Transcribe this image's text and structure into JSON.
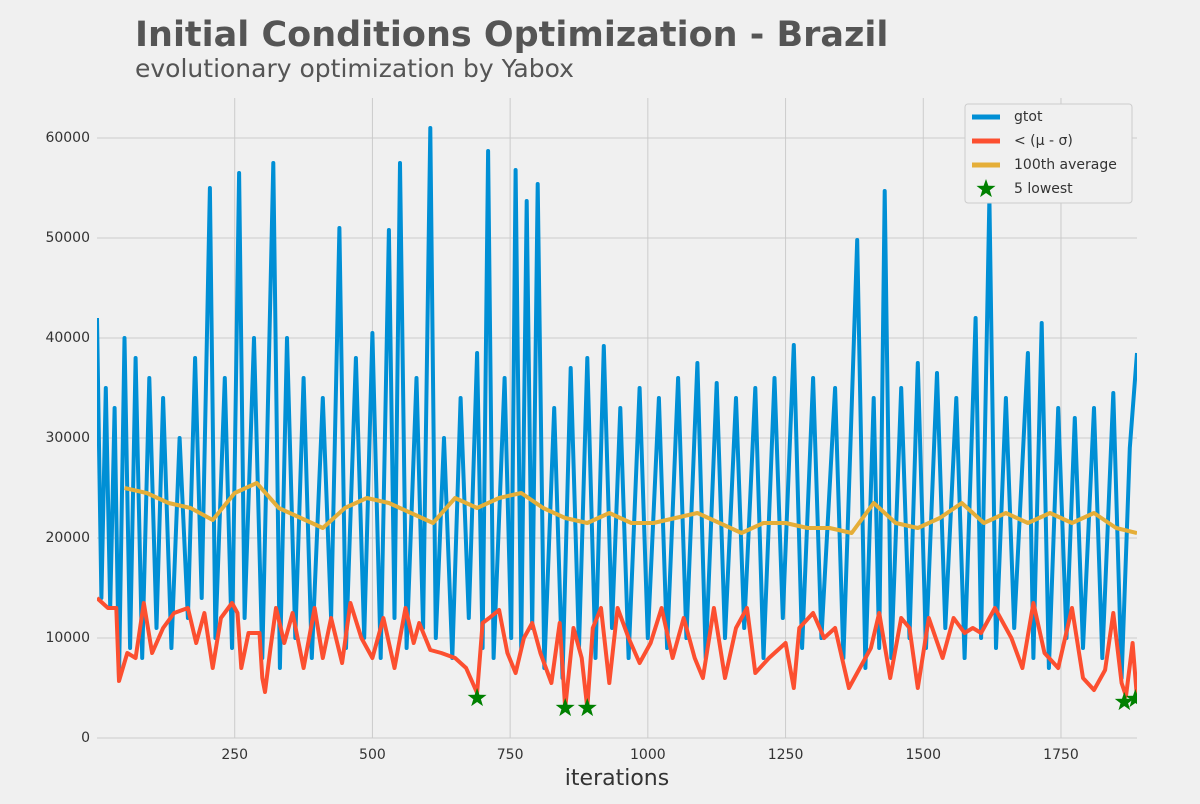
{
  "chart_data": {
    "type": "line",
    "title": "Initial Conditions Optimization - Brazil",
    "subtitle": "evolutionary optimization by Yabox",
    "x_label": "iterations",
    "xlim": [
      0,
      1888
    ],
    "ylim": [
      0,
      64000
    ],
    "xticks": [
      250,
      500,
      750,
      1000,
      1250,
      1500,
      1750
    ],
    "yticks": [
      0,
      10000,
      20000,
      30000,
      40000,
      50000,
      60000
    ],
    "grid": true,
    "legend": "upper right",
    "series": [
      {
        "name": "gtot",
        "color": "#008fd5",
        "type": "line",
        "x": [
          0,
          8,
          16,
          24,
          32,
          40,
          50,
          60,
          70,
          82,
          95,
          108,
          120,
          135,
          150,
          165,
          178,
          190,
          205,
          215,
          232,
          245,
          258,
          268,
          285,
          300,
          320,
          332,
          345,
          360,
          375,
          390,
          410,
          425,
          440,
          452,
          470,
          485,
          500,
          515,
          530,
          540,
          550,
          562,
          580,
          592,
          605,
          615,
          630,
          645,
          660,
          675,
          690,
          700,
          710,
          720,
          740,
          752,
          760,
          770,
          780,
          790,
          800,
          812,
          830,
          845,
          860,
          875,
          890,
          905,
          920,
          935,
          950,
          965,
          985,
          1000,
          1020,
          1035,
          1055,
          1070,
          1090,
          1105,
          1125,
          1140,
          1160,
          1175,
          1195,
          1210,
          1230,
          1245,
          1265,
          1280,
          1300,
          1315,
          1340,
          1355,
          1380,
          1395,
          1410,
          1420,
          1430,
          1442,
          1460,
          1475,
          1490,
          1505,
          1525,
          1540,
          1560,
          1575,
          1595,
          1605,
          1620,
          1632,
          1650,
          1665,
          1690,
          1700,
          1715,
          1728,
          1745,
          1760,
          1775,
          1790,
          1810,
          1825,
          1845,
          1860,
          1875,
          1888
        ],
        "values": [
          42000,
          14000,
          35000,
          13000,
          33000,
          6000,
          40000,
          9000,
          38000,
          8000,
          36000,
          11000,
          34000,
          9000,
          30000,
          12000,
          38000,
          14000,
          55000,
          10000,
          36000,
          9000,
          56500,
          12000,
          40000,
          8000,
          57500,
          7000,
          40000,
          10000,
          36000,
          8000,
          34000,
          12000,
          51000,
          9000,
          38000,
          10000,
          40500,
          8000,
          50800,
          12000,
          57500,
          9000,
          36000,
          11000,
          61000,
          10000,
          30000,
          8000,
          34000,
          12000,
          38500,
          9000,
          58700,
          8000,
          36000,
          10000,
          56800,
          9000,
          53700,
          11000,
          55400,
          7000,
          33000,
          6000,
          37000,
          9000,
          38000,
          8000,
          39200,
          11000,
          33000,
          8000,
          35000,
          10000,
          34000,
          9000,
          36000,
          10000,
          37500,
          8000,
          35500,
          10000,
          34000,
          11000,
          35000,
          8000,
          36000,
          12000,
          39300,
          9000,
          36000,
          10000,
          35000,
          8000,
          49800,
          7000,
          34000,
          9000,
          54700,
          8000,
          35000,
          10000,
          37500,
          9000,
          36500,
          11000,
          34000,
          8000,
          42000,
          10000,
          54000,
          9000,
          34000,
          11000,
          38500,
          8000,
          41500,
          7000,
          33000,
          10000,
          32000,
          9000,
          33000,
          8000,
          34500,
          6000,
          29000,
          38500
        ]
      },
      {
        "name": "< (μ - σ)",
        "color": "#fc4f30",
        "type": "line",
        "x": [
          0,
          20,
          35,
          40,
          55,
          70,
          85,
          100,
          120,
          140,
          165,
          180,
          195,
          210,
          225,
          245,
          255,
          262,
          275,
          295,
          300,
          305,
          315,
          325,
          340,
          355,
          375,
          395,
          410,
          425,
          445,
          460,
          480,
          500,
          520,
          540,
          560,
          575,
          585,
          605,
          625,
          650,
          670,
          690,
          700,
          712,
          730,
          745,
          760,
          775,
          790,
          805,
          825,
          840,
          850,
          865,
          880,
          890,
          900,
          915,
          930,
          945,
          965,
          985,
          1005,
          1025,
          1045,
          1065,
          1085,
          1100,
          1120,
          1140,
          1160,
          1180,
          1195,
          1220,
          1250,
          1265,
          1275,
          1300,
          1320,
          1340,
          1365,
          1385,
          1405,
          1420,
          1440,
          1460,
          1475,
          1490,
          1510,
          1535,
          1555,
          1575,
          1590,
          1605,
          1630,
          1660,
          1680,
          1700,
          1720,
          1745,
          1770,
          1790,
          1810,
          1830,
          1845,
          1860,
          1868,
          1880,
          1888
        ],
        "values": [
          14000,
          13000,
          13000,
          5700,
          8500,
          8000,
          13500,
          8500,
          11000,
          12500,
          13000,
          9500,
          12500,
          7000,
          12000,
          13500,
          12500,
          7000,
          10500,
          10500,
          6000,
          4600,
          9000,
          13000,
          9500,
          12500,
          7000,
          13000,
          8000,
          12000,
          7500,
          13500,
          10000,
          8000,
          12000,
          7000,
          13000,
          9500,
          11500,
          8800,
          8500,
          8000,
          7000,
          4500,
          11500,
          12000,
          12800,
          8500,
          6500,
          10000,
          11500,
          8500,
          5500,
          11500,
          3000,
          11000,
          8000,
          3000,
          11000,
          13000,
          5500,
          13000,
          10000,
          7500,
          9500,
          13000,
          8000,
          12000,
          8000,
          6000,
          13000,
          6000,
          11000,
          13000,
          6500,
          8000,
          9500,
          5000,
          11000,
          12500,
          10000,
          11000,
          5000,
          7000,
          9000,
          12500,
          6000,
          12000,
          11000,
          5000,
          12000,
          8000,
          12000,
          10500,
          11000,
          10500,
          13000,
          10000,
          7000,
          13500,
          8500,
          7000,
          13000,
          6000,
          4800,
          6800,
          12500,
          5500,
          4200,
          9500,
          4000
        ]
      },
      {
        "name": "100th average",
        "color": "#e5ae38",
        "type": "line",
        "x": [
          50,
          90,
          130,
          170,
          210,
          250,
          290,
          330,
          370,
          410,
          450,
          490,
          530,
          570,
          610,
          650,
          690,
          730,
          770,
          810,
          850,
          890,
          930,
          970,
          1010,
          1050,
          1090,
          1130,
          1170,
          1210,
          1250,
          1290,
          1330,
          1370,
          1410,
          1450,
          1490,
          1530,
          1570,
          1610,
          1650,
          1690,
          1730,
          1770,
          1810,
          1850,
          1888
        ],
        "values": [
          25000,
          24500,
          23500,
          23000,
          21800,
          24500,
          25500,
          23000,
          22000,
          21000,
          23000,
          24000,
          23500,
          22500,
          21500,
          24000,
          23000,
          24000,
          24500,
          23000,
          22000,
          21500,
          22500,
          21500,
          21500,
          22000,
          22500,
          21500,
          20500,
          21500,
          21500,
          21000,
          21000,
          20500,
          23500,
          21500,
          21000,
          22000,
          23500,
          21500,
          22500,
          21500,
          22500,
          21500,
          22500,
          21000,
          20500
        ]
      },
      {
        "name": "5 lowest",
        "color": "green",
        "type": "scatter",
        "x": [
          690,
          850,
          890,
          1865,
          1885
        ],
        "values": [
          4000,
          3000,
          3000,
          3600,
          3900
        ]
      }
    ]
  }
}
